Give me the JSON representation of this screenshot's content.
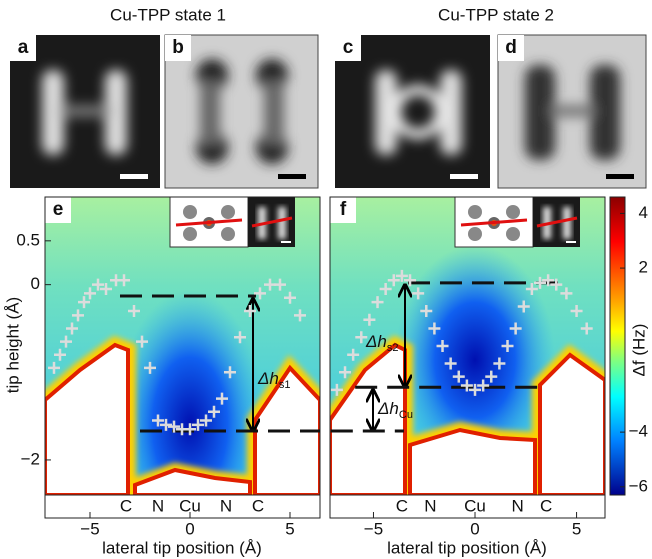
{
  "titles": [
    "Cu-TPP state 1",
    "Cu-TPP state 2"
  ],
  "panel_labels": [
    "a",
    "b",
    "c",
    "d",
    "e",
    "f"
  ],
  "colorbar": {
    "label": "Δf (Hz)",
    "lim": [
      -6.3,
      4.6
    ],
    "ticks": [
      4,
      2,
      {
        "value": -4,
        "label": "−4"
      },
      {
        "value": -6,
        "label": "−6"
      }
    ]
  },
  "chart_data": [
    {
      "type": "scatter",
      "xlabel": "lateral tip position (Å)",
      "ylabel": "tip height (Å)",
      "xlim": [
        -7.25,
        6.5
      ],
      "ylim": [
        -2.4,
        1.0
      ],
      "xticks": [
        {
          "value": -5,
          "label": "−5"
        },
        0,
        5
      ],
      "yticks": [
        0.5,
        0,
        {
          "value": -2,
          "label": "−2"
        }
      ],
      "atom_labels": [
        "C",
        "N",
        "Cu",
        "N",
        "C"
      ],
      "atom_x": [
        -3.2,
        -1.6,
        0,
        1.8,
        3.4
      ],
      "series": [
        {
          "color": "#dcdcdc",
          "x": [
            -6.8,
            -6.5,
            -6.2,
            -5.9,
            -5.6,
            -5.3,
            -5,
            -4.6,
            -4.2,
            -3.7,
            -3.3,
            -2.8,
            -2.4,
            -2,
            -1.6,
            -1.2,
            -0.8,
            -0.4,
            0,
            0.4,
            0.8,
            1.2,
            1.6,
            2,
            2.5,
            3,
            3.5,
            4,
            4.5,
            5,
            5.5
          ],
          "values": [
            -0.95,
            -0.8,
            -0.65,
            -0.5,
            -0.35,
            -0.2,
            -0.1,
            0,
            -0.05,
            0.05,
            0.05,
            -0.3,
            -0.65,
            -0.95,
            -1.55,
            -1.6,
            -1.62,
            -1.65,
            -1.65,
            -1.6,
            -1.55,
            -1.45,
            -1.3,
            -1.0,
            -0.6,
            -0.3,
            -0.1,
            0,
            0,
            -0.15,
            -0.35
          ]
        }
      ],
      "reference_lines": [
        {
          "y": -0.13,
          "x": [
            -3.5,
            3.3
          ]
        },
        {
          "y": -1.67,
          "x": [
            -2.5,
            6.5
          ]
        }
      ],
      "annotations": [
        {
          "main": "Δh",
          "sub": "s1"
        }
      ]
    },
    {
      "type": "scatter",
      "xlabel": "lateral tip position (Å)",
      "xlim": [
        -7.14,
        6.4
      ],
      "ylim": [
        -2.4,
        1.0
      ],
      "xticks": [
        {
          "value": -5,
          "label": "−5"
        },
        0,
        5
      ],
      "atom_labels": [
        "C",
        "N",
        "Cu",
        "N",
        "C"
      ],
      "atom_x": [
        -3.6,
        -2.2,
        0,
        2.1,
        3.5
      ],
      "series": [
        {
          "color": "#dcdcdc",
          "x": [
            -6.8,
            -6.4,
            -6,
            -5.6,
            -5.2,
            -4.8,
            -4.4,
            -4,
            -3.6,
            -3.2,
            -2.8,
            -2.4,
            -2,
            -1.6,
            -1.2,
            -0.8,
            -0.4,
            0,
            0.4,
            0.8,
            1.2,
            1.6,
            2,
            2.4,
            2.8,
            3.2,
            3.6,
            4,
            4.5,
            5,
            5.5
          ],
          "values": [
            -1.2,
            -1.0,
            -0.8,
            -0.6,
            -0.4,
            -0.2,
            -0.05,
            0.05,
            0.1,
            0.05,
            -0.1,
            -0.3,
            -0.5,
            -0.7,
            -0.9,
            -1.05,
            -1.15,
            -1.2,
            -1.15,
            -1.05,
            -0.9,
            -0.7,
            -0.5,
            -0.25,
            -0.05,
            0.02,
            0.05,
            0,
            -0.1,
            -0.3,
            -0.5
          ]
        }
      ],
      "reference_lines": [
        {
          "y": 0.02,
          "x": [
            -3.3,
            4.4
          ]
        },
        {
          "y": -1.17,
          "x": [
            -5.9,
            3.2
          ]
        },
        {
          "y": -1.67,
          "x": [
            -7.1,
            -3.5
          ]
        }
      ],
      "annotations": [
        {
          "main": "Δh",
          "sub": "s2"
        },
        {
          "main": "Δh",
          "sub": "Cu"
        }
      ]
    }
  ]
}
